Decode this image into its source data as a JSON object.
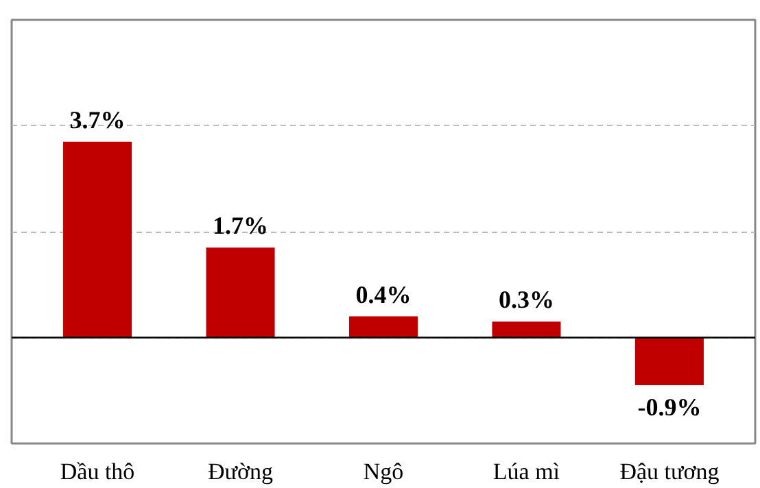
{
  "chart_data": {
    "type": "bar",
    "categories": [
      "Dầu thô",
      "Đường",
      "Ngô",
      "Lúa mì",
      "Đậu tương"
    ],
    "values": [
      3.7,
      1.7,
      0.4,
      0.3,
      -0.9
    ],
    "color": "#c00000",
    "value_labels": [
      "3.7%",
      "1.7%",
      "0.4%",
      "0.3%",
      "-0.9%"
    ],
    "ylim": [
      -2,
      6
    ],
    "yticks": [
      {
        "value": 0,
        "label": null
      },
      {
        "value": 2,
        "label": null
      },
      {
        "value": 4,
        "label": null
      }
    ],
    "grid": "y",
    "tick_labels": "x",
    "ref_lines": [
      {
        "axis": "y",
        "value": 0,
        "label": null,
        "color": "#000000",
        "line_style": "solid"
      }
    ]
  }
}
